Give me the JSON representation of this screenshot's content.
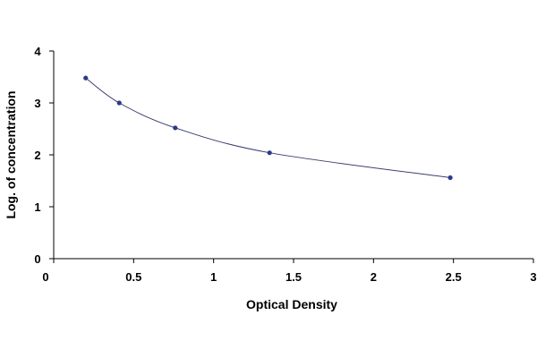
{
  "chart_data": {
    "type": "scatter",
    "xlabel": "Optical Density",
    "ylabel": "Log. of concentration",
    "xlim": [
      0,
      3
    ],
    "ylim": [
      0,
      4
    ],
    "xticks": [
      0,
      0.5,
      1,
      1.5,
      2,
      2.5,
      3
    ],
    "xtick_labels": [
      "0",
      "0.5",
      "1",
      "1.5",
      "2",
      "2.5",
      "3"
    ],
    "yticks": [
      0,
      1,
      2,
      3,
      4
    ],
    "ytick_labels": [
      "0",
      "1",
      "2",
      "3",
      "4"
    ],
    "grid": false,
    "legend": "none",
    "trendline": "smooth curve through points",
    "series": [
      {
        "points": [
          {
            "x": 0.2,
            "y": 3.48
          },
          {
            "x": 0.41,
            "y": 3.0
          },
          {
            "x": 0.76,
            "y": 2.52
          },
          {
            "x": 1.35,
            "y": 2.04
          },
          {
            "x": 2.48,
            "y": 1.56
          }
        ],
        "marker_color": "#2b3a8a",
        "line_color": "#3b3f6e"
      }
    ]
  }
}
